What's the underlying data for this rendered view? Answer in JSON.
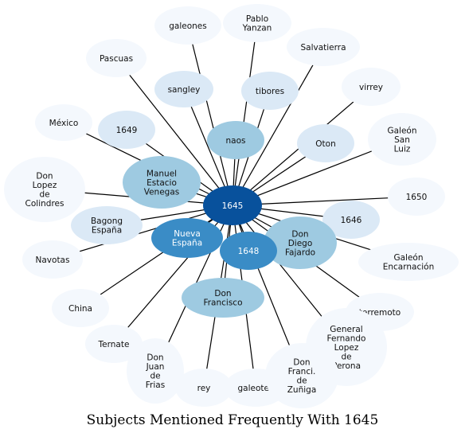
{
  "title": "Subjects Mentioned Frequently With 1645",
  "center": {
    "id": "n1645",
    "label": "1645"
  },
  "colors": {
    "center": "#08519c",
    "strong": "#3a8cc6",
    "medium": "#9ecae1",
    "light": "#dbe9f6",
    "faint": "#f4f8fd"
  },
  "nodes": [
    {
      "id": "galeones",
      "lines": [
        "galeones"
      ],
      "tier": "faint"
    },
    {
      "id": "pablo-yanzan",
      "lines": [
        "Pablo",
        "Yanzan"
      ],
      "tier": "faint"
    },
    {
      "id": "salvatierra",
      "lines": [
        "Salvatierra"
      ],
      "tier": "faint"
    },
    {
      "id": "pascuas",
      "lines": [
        "Pascuas"
      ],
      "tier": "faint"
    },
    {
      "id": "virrey",
      "lines": [
        "virrey"
      ],
      "tier": "faint"
    },
    {
      "id": "sangley",
      "lines": [
        "sangley"
      ],
      "tier": "light"
    },
    {
      "id": "tibores",
      "lines": [
        "tibores"
      ],
      "tier": "light"
    },
    {
      "id": "mexico",
      "lines": [
        "México"
      ],
      "tier": "faint"
    },
    {
      "id": "n1649",
      "lines": [
        "1649"
      ],
      "tier": "light"
    },
    {
      "id": "naos",
      "lines": [
        "naos"
      ],
      "tier": "medium"
    },
    {
      "id": "oton",
      "lines": [
        "Oton"
      ],
      "tier": "light"
    },
    {
      "id": "galeon-san-luiz",
      "lines": [
        "Galeón",
        "San",
        "Luiz"
      ],
      "tier": "faint"
    },
    {
      "id": "manuel-estacio-venegas",
      "lines": [
        "Manuel",
        "Estacio",
        "Venegas"
      ],
      "tier": "medium"
    },
    {
      "id": "don-lopez-de-colindres",
      "lines": [
        "Don",
        "Lopez",
        "de",
        "Colindres"
      ],
      "tier": "faint"
    },
    {
      "id": "n1650",
      "lines": [
        "1650"
      ],
      "tier": "faint"
    },
    {
      "id": "n1646",
      "lines": [
        "1646"
      ],
      "tier": "light"
    },
    {
      "id": "bagong-espana",
      "lines": [
        "Bagong",
        "España"
      ],
      "tier": "light"
    },
    {
      "id": "nueva-espana",
      "lines": [
        "Nueva",
        "España"
      ],
      "tier": "strong"
    },
    {
      "id": "don-diego-fajardo",
      "lines": [
        "Don",
        "Diego",
        "Fajardo"
      ],
      "tier": "medium"
    },
    {
      "id": "galeon-encarnacion",
      "lines": [
        "Galeón",
        "Encarnación"
      ],
      "tier": "faint"
    },
    {
      "id": "navotas",
      "lines": [
        "Navotas"
      ],
      "tier": "faint"
    },
    {
      "id": "n1648",
      "lines": [
        "1648"
      ],
      "tier": "strong"
    },
    {
      "id": "china",
      "lines": [
        "China"
      ],
      "tier": "faint"
    },
    {
      "id": "don-francisco",
      "lines": [
        "Don",
        "Francisco"
      ],
      "tier": "medium"
    },
    {
      "id": "terremoto",
      "lines": [
        "terremoto"
      ],
      "tier": "faint"
    },
    {
      "id": "general-fernando-lopez-de-perona",
      "lines": [
        "General",
        "Fernando",
        "Lopez",
        "de",
        "Perona"
      ],
      "tier": "faint"
    },
    {
      "id": "ternate",
      "lines": [
        "Ternate"
      ],
      "tier": "faint"
    },
    {
      "id": "don-juan-de-frias",
      "lines": [
        "Don",
        "Juan",
        "de",
        "Frias"
      ],
      "tier": "faint"
    },
    {
      "id": "rey",
      "lines": [
        "rey"
      ],
      "tier": "faint"
    },
    {
      "id": "galeotes",
      "lines": [
        "galeotes"
      ],
      "tier": "faint"
    },
    {
      "id": "don-francisco-de-zuniga",
      "lines": [
        "Don",
        "Franci.",
        "de",
        "Zuñiga"
      ],
      "tier": "faint"
    }
  ]
}
